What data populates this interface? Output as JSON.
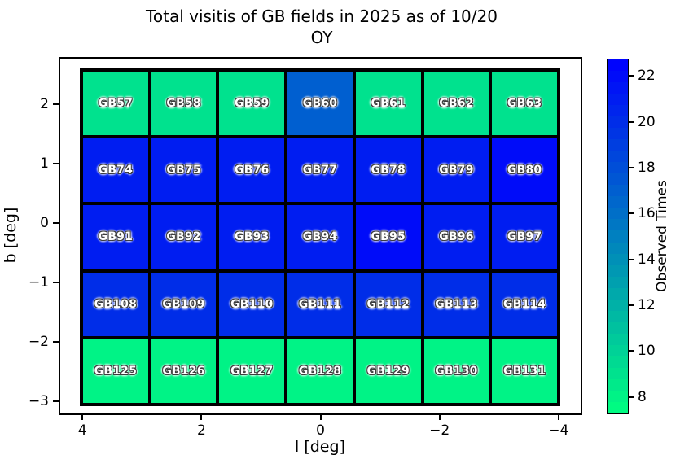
{
  "title": {
    "line1": "Total visitis of GB fields in 2025 as of 10/20",
    "line2": "OY"
  },
  "x_axis": {
    "label": "l [deg]",
    "ticks": [
      4,
      2,
      0,
      -2,
      -4
    ],
    "range": [
      4.4,
      -4.4
    ]
  },
  "y_axis": {
    "label": "b [deg]",
    "ticks": [
      2,
      1,
      0,
      -1,
      -2,
      -3
    ],
    "range": [
      2.79,
      -3.23
    ]
  },
  "colorbar": {
    "label": "Observed Times",
    "ticks": [
      8,
      10,
      12,
      14,
      16,
      18,
      20,
      22
    ],
    "vmin": 7.25,
    "vmax": 22.75,
    "colormap": "winter_r",
    "band_step": 0.5,
    "low_color": "#00ff80",
    "high_color": "#0000ff"
  },
  "chart_data": {
    "type": "heatmap",
    "title": "Total visitis of GB fields in 2025 as of 10/20 OY",
    "xlabel": "l [deg]",
    "ylabel": "b [deg]",
    "colorbar_label": "Observed Times",
    "legend_position": "right",
    "grid": "off",
    "rows": [
      {
        "labels": [
          "GB57",
          "GB58",
          "GB59",
          "GB60",
          "GB61",
          "GB62",
          "GB63"
        ],
        "values": [
          9,
          9,
          9,
          17,
          9,
          9,
          9
        ]
      },
      {
        "labels": [
          "GB74",
          "GB75",
          "GB76",
          "GB77",
          "GB78",
          "GB79",
          "GB80"
        ],
        "values": [
          21,
          21,
          21,
          21,
          21,
          21,
          22
        ]
      },
      {
        "labels": [
          "GB91",
          "GB92",
          "GB93",
          "GB94",
          "GB95",
          "GB96",
          "GB97"
        ],
        "values": [
          21,
          21,
          21,
          21,
          22,
          21,
          21
        ]
      },
      {
        "labels": [
          "GB108",
          "GB109",
          "GB110",
          "GB111",
          "GB112",
          "GB113",
          "GB114"
        ],
        "values": [
          20,
          20,
          20,
          20,
          20,
          20,
          20
        ]
      },
      {
        "labels": [
          "GB125",
          "GB126",
          "GB127",
          "GB128",
          "GB129",
          "GB130",
          "GB131"
        ],
        "values": [
          8,
          8,
          8,
          8,
          8,
          8,
          8
        ]
      }
    ]
  }
}
